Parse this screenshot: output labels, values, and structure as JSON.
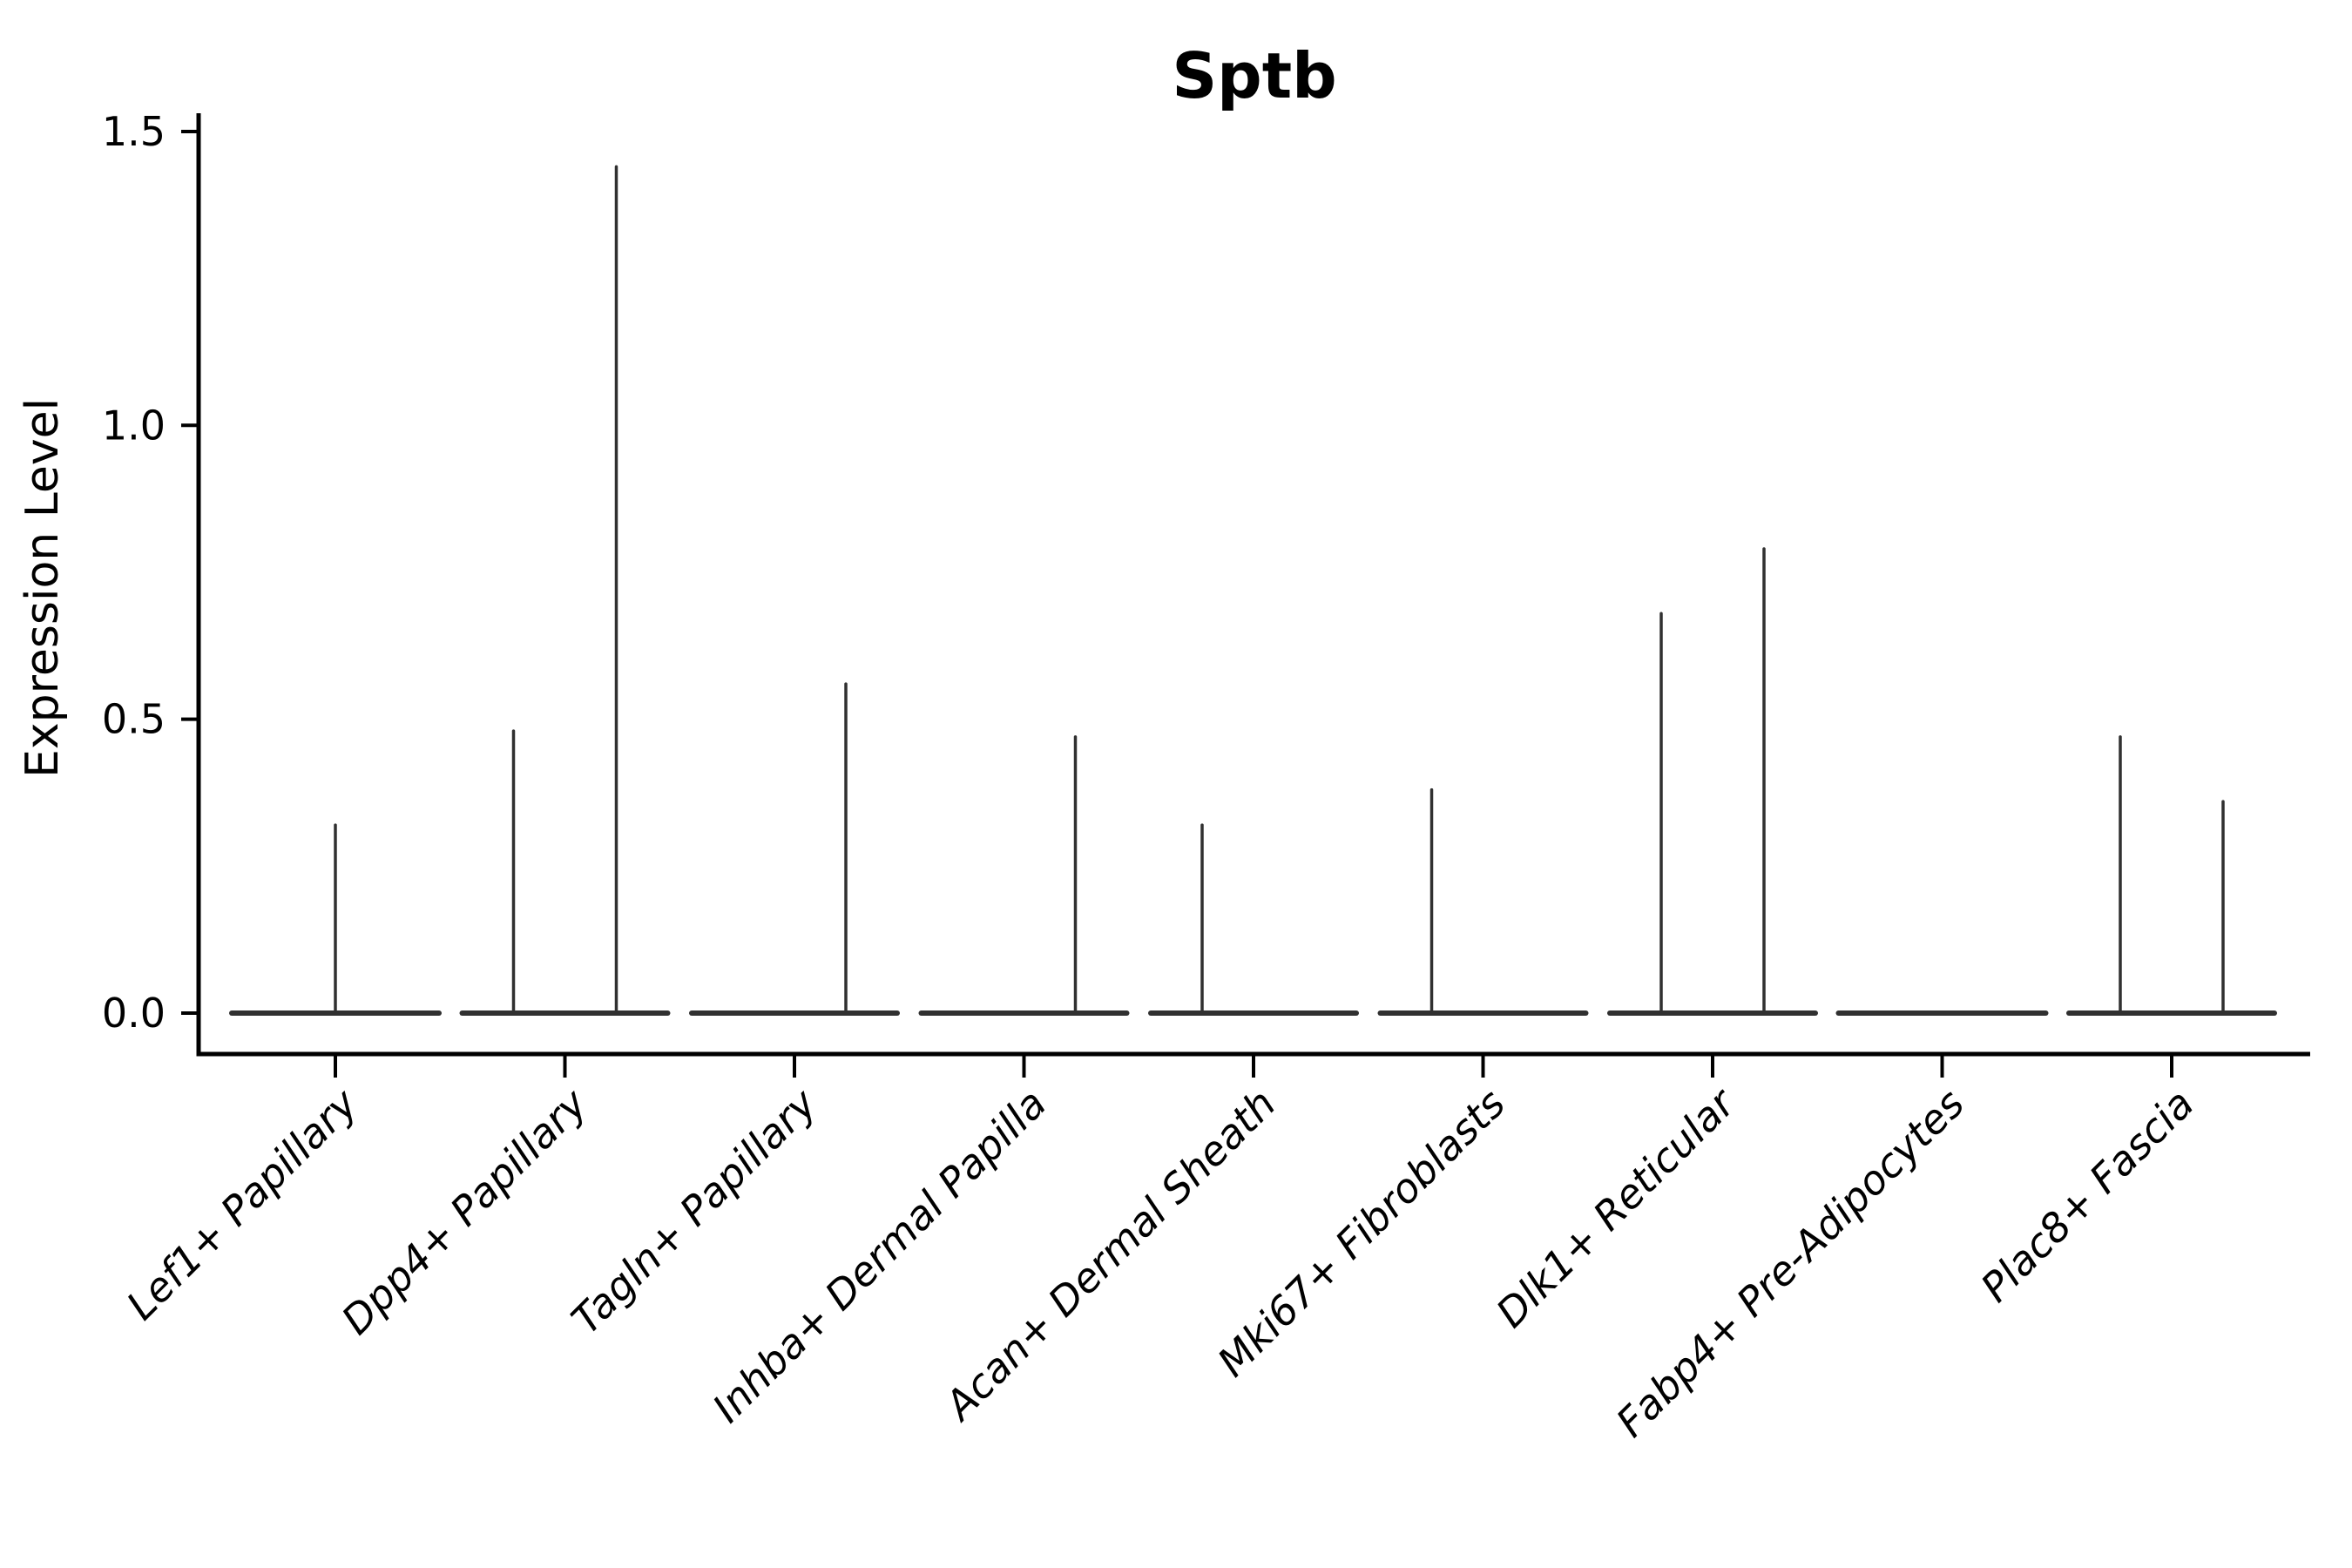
{
  "figure": {
    "background": "#ffffff"
  },
  "chart_data": {
    "type": "violin",
    "title": "Sptb",
    "xlabel": "",
    "ylabel": "Expression Level",
    "ylim": [
      0,
      1.5
    ],
    "yticks": [
      0.0,
      0.5,
      1.0,
      1.5
    ],
    "ytick_labels": [
      "0.0",
      "0.5",
      "1.0",
      "1.5"
    ],
    "grid": false,
    "legend": "none",
    "categories": [
      "Lef1+ Papillary",
      "Dpp4+ Papillary",
      "Tagln+ Papillary",
      "Inhba+ Dermal Papilla",
      "Acan+ Dermal Sheath",
      "Mki67+ Fibroblasts",
      "Dlk1+ Reticular",
      "Fabp4+ Pre-Adipocytes",
      "Plac8+ Fascia"
    ],
    "violins": [
      {
        "category": "Lef1+ Papillary",
        "parts": [
          {
            "span": "full",
            "max": 0.32
          }
        ]
      },
      {
        "category": "Dpp4+ Papillary",
        "parts": [
          {
            "span": "left",
            "max": 0.48
          },
          {
            "span": "right",
            "max": 1.44
          }
        ]
      },
      {
        "category": "Tagln+ Papillary",
        "parts": [
          {
            "span": "left",
            "max": 0
          },
          {
            "span": "right",
            "max": 0.56
          }
        ]
      },
      {
        "category": "Inhba+ Dermal Papilla",
        "parts": [
          {
            "span": "left",
            "max": 0
          },
          {
            "span": "right",
            "max": 0.47
          }
        ]
      },
      {
        "category": "Acan+ Dermal Sheath",
        "parts": [
          {
            "span": "left",
            "max": 0.32
          },
          {
            "span": "right",
            "max": 0
          }
        ]
      },
      {
        "category": "Mki67+ Fibroblasts",
        "parts": [
          {
            "span": "left",
            "max": 0.38
          },
          {
            "span": "right",
            "max": 0
          }
        ]
      },
      {
        "category": "Dlk1+ Reticular",
        "parts": [
          {
            "span": "left",
            "max": 0.68
          },
          {
            "span": "right",
            "max": 0.79
          }
        ]
      },
      {
        "category": "Fabp4+ Pre-Adipocytes",
        "parts": [
          {
            "span": "full",
            "max": 0
          }
        ]
      },
      {
        "category": "Plac8+ Fascia",
        "parts": [
          {
            "span": "left",
            "max": 0.47
          },
          {
            "span": "right",
            "max": 0.36
          }
        ]
      }
    ],
    "colors": {
      "violin_stroke": "#303030",
      "axis": "#000000",
      "text": "#000000"
    }
  }
}
